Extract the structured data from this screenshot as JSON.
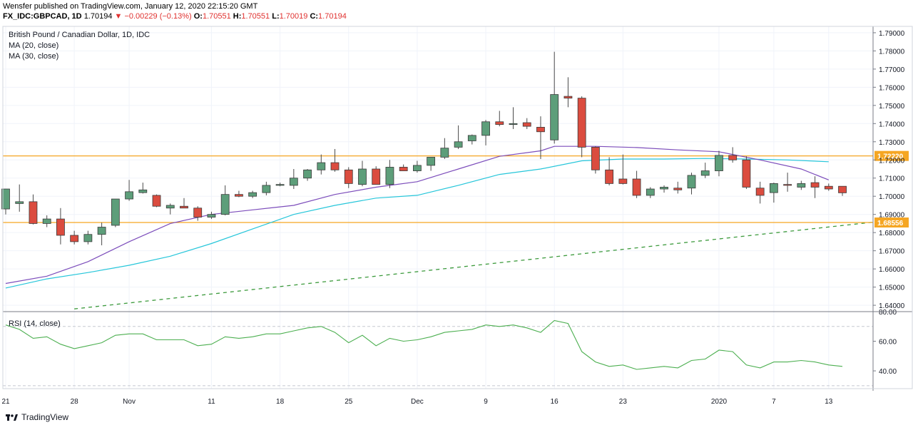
{
  "header": {
    "line1": "Wensfer published on TradingView.com, January 12, 2020 22:15:20 GMT",
    "symbol": "FX_IDC:GBPCAD, 1D",
    "last": "1.70194",
    "change": "▼ −0.00229 (−0.13%)",
    "o_label": "O:",
    "o": "1.70551",
    "h_label": "H:",
    "h": "1.70551",
    "l_label": "L:",
    "l": "1.70019",
    "c_label": "C:",
    "c": "1.70194"
  },
  "legend": {
    "title": "British Pound / Canadian Dollar, 1D, IDC",
    "ma20": "MA (20, close)",
    "ma30": "MA (30, close)",
    "rsi": "RSI (14, close)"
  },
  "footer": {
    "brand": "TradingView"
  },
  "colors": {
    "up": "#5d9e7a",
    "down": "#db4c3f",
    "ma20": "#7c4dbb",
    "ma30": "#26c6da",
    "hline": "#f5a623",
    "trend": "#3c9a3c",
    "rsi": "#4caf50"
  },
  "chart_data": {
    "type": "candlestick",
    "price_axis": {
      "ticks": [
        "1.79000",
        "1.78000",
        "1.77000",
        "1.76000",
        "1.75000",
        "1.74000",
        "1.73000",
        "1.72000",
        "1.71000",
        "1.70000",
        "1.69000",
        "1.68000",
        "1.67000",
        "1.66000",
        "1.65000",
        "1.64000"
      ],
      "range": [
        1.6365,
        1.7935
      ]
    },
    "rsi_axis": {
      "ticks": [
        "80.00",
        "60.00",
        "40.00"
      ],
      "range": [
        28,
        80
      ],
      "bands": [
        70,
        30
      ]
    },
    "time_axis": {
      "labels": [
        {
          "text": "21",
          "i": 0
        },
        {
          "text": "28",
          "i": 5
        },
        {
          "text": "Nov",
          "i": 9
        },
        {
          "text": "11",
          "i": 15
        },
        {
          "text": "18",
          "i": 20
        },
        {
          "text": "25",
          "i": 25
        },
        {
          "text": "Dec",
          "i": 30
        },
        {
          "text": "9",
          "i": 35
        },
        {
          "text": "16",
          "i": 40
        },
        {
          "text": "23",
          "i": 45
        },
        {
          "text": "2020",
          "i": 52
        },
        {
          "text": "7",
          "i": 56
        },
        {
          "text": "13",
          "i": 60
        }
      ]
    },
    "candles": [
      {
        "o": 1.693,
        "h": 1.704,
        "l": 1.69,
        "c": 1.704
      },
      {
        "o": 1.696,
        "h": 1.7065,
        "l": 1.6915,
        "c": 1.697
      },
      {
        "o": 1.697,
        "h": 1.701,
        "l": 1.6845,
        "c": 1.685
      },
      {
        "o": 1.685,
        "h": 1.6895,
        "l": 1.683,
        "c": 1.6875
      },
      {
        "o": 1.6875,
        "h": 1.6935,
        "l": 1.6735,
        "c": 1.6785
      },
      {
        "o": 1.6785,
        "h": 1.681,
        "l": 1.6735,
        "c": 1.675
      },
      {
        "o": 1.675,
        "h": 1.681,
        "l": 1.6735,
        "c": 1.679
      },
      {
        "o": 1.679,
        "h": 1.6855,
        "l": 1.673,
        "c": 1.683
      },
      {
        "o": 1.684,
        "h": 1.6985,
        "l": 1.683,
        "c": 1.6985
      },
      {
        "o": 1.6985,
        "h": 1.709,
        "l": 1.6975,
        "c": 1.7025
      },
      {
        "o": 1.702,
        "h": 1.7075,
        "l": 1.7015,
        "c": 1.7035
      },
      {
        "o": 1.7005,
        "h": 1.701,
        "l": 1.694,
        "c": 1.6945
      },
      {
        "o": 1.6935,
        "h": 1.696,
        "l": 1.69,
        "c": 1.695
      },
      {
        "o": 1.6945,
        "h": 1.699,
        "l": 1.6935,
        "c": 1.6935
      },
      {
        "o": 1.6935,
        "h": 1.6945,
        "l": 1.6865,
        "c": 1.6885
      },
      {
        "o": 1.6885,
        "h": 1.6915,
        "l": 1.6875,
        "c": 1.69
      },
      {
        "o": 1.69,
        "h": 1.706,
        "l": 1.6895,
        "c": 1.701
      },
      {
        "o": 1.701,
        "h": 1.703,
        "l": 1.6995,
        "c": 1.7
      },
      {
        "o": 1.7,
        "h": 1.703,
        "l": 1.699,
        "c": 1.702
      },
      {
        "o": 1.702,
        "h": 1.708,
        "l": 1.7005,
        "c": 1.706
      },
      {
        "o": 1.706,
        "h": 1.7075,
        "l": 1.7055,
        "c": 1.7065
      },
      {
        "o": 1.706,
        "h": 1.715,
        "l": 1.704,
        "c": 1.71
      },
      {
        "o": 1.71,
        "h": 1.715,
        "l": 1.7085,
        "c": 1.7145
      },
      {
        "o": 1.7145,
        "h": 1.723,
        "l": 1.712,
        "c": 1.7185
      },
      {
        "o": 1.7185,
        "h": 1.726,
        "l": 1.7135,
        "c": 1.7145
      },
      {
        "o": 1.7145,
        "h": 1.716,
        "l": 1.7045,
        "c": 1.707
      },
      {
        "o": 1.7065,
        "h": 1.7195,
        "l": 1.7055,
        "c": 1.715
      },
      {
        "o": 1.715,
        "h": 1.7165,
        "l": 1.7065,
        "c": 1.7065
      },
      {
        "o": 1.7065,
        "h": 1.72,
        "l": 1.7045,
        "c": 1.716
      },
      {
        "o": 1.716,
        "h": 1.7175,
        "l": 1.714,
        "c": 1.714
      },
      {
        "o": 1.714,
        "h": 1.7195,
        "l": 1.713,
        "c": 1.717
      },
      {
        "o": 1.717,
        "h": 1.7215,
        "l": 1.714,
        "c": 1.7215
      },
      {
        "o": 1.7215,
        "h": 1.732,
        "l": 1.7205,
        "c": 1.7265
      },
      {
        "o": 1.727,
        "h": 1.739,
        "l": 1.726,
        "c": 1.73
      },
      {
        "o": 1.7305,
        "h": 1.734,
        "l": 1.7285,
        "c": 1.7335
      },
      {
        "o": 1.7335,
        "h": 1.742,
        "l": 1.728,
        "c": 1.741
      },
      {
        "o": 1.741,
        "h": 1.747,
        "l": 1.7385,
        "c": 1.7395
      },
      {
        "o": 1.7395,
        "h": 1.749,
        "l": 1.737,
        "c": 1.74
      },
      {
        "o": 1.7405,
        "h": 1.743,
        "l": 1.737,
        "c": 1.7385
      },
      {
        "o": 1.738,
        "h": 1.744,
        "l": 1.7205,
        "c": 1.7355
      },
      {
        "o": 1.731,
        "h": 1.7795,
        "l": 1.729,
        "c": 1.756
      },
      {
        "o": 1.755,
        "h": 1.7655,
        "l": 1.749,
        "c": 1.754
      },
      {
        "o": 1.754,
        "h": 1.755,
        "l": 1.7215,
        "c": 1.727
      },
      {
        "o": 1.727,
        "h": 1.7275,
        "l": 1.7125,
        "c": 1.7145
      },
      {
        "o": 1.7145,
        "h": 1.7215,
        "l": 1.706,
        "c": 1.707
      },
      {
        "o": 1.7095,
        "h": 1.723,
        "l": 1.7065,
        "c": 1.707
      },
      {
        "o": 1.7095,
        "h": 1.714,
        "l": 1.699,
        "c": 1.7005
      },
      {
        "o": 1.7005,
        "h": 1.705,
        "l": 1.699,
        "c": 1.704
      },
      {
        "o": 1.704,
        "h": 1.706,
        "l": 1.702,
        "c": 1.705
      },
      {
        "o": 1.7045,
        "h": 1.708,
        "l": 1.7015,
        "c": 1.7035
      },
      {
        "o": 1.7045,
        "h": 1.713,
        "l": 1.701,
        "c": 1.7115
      },
      {
        "o": 1.7115,
        "h": 1.7185,
        "l": 1.71,
        "c": 1.714
      },
      {
        "o": 1.714,
        "h": 1.725,
        "l": 1.711,
        "c": 1.7225
      },
      {
        "o": 1.7225,
        "h": 1.727,
        "l": 1.7185,
        "c": 1.72
      },
      {
        "o": 1.72,
        "h": 1.722,
        "l": 1.704,
        "c": 1.705
      },
      {
        "o": 1.7045,
        "h": 1.708,
        "l": 1.696,
        "c": 1.7005
      },
      {
        "o": 1.702,
        "h": 1.7075,
        "l": 1.6965,
        "c": 1.707
      },
      {
        "o": 1.7065,
        "h": 1.713,
        "l": 1.7025,
        "c": 1.706
      },
      {
        "o": 1.705,
        "h": 1.7085,
        "l": 1.7035,
        "c": 1.707
      },
      {
        "o": 1.7075,
        "h": 1.711,
        "l": 1.699,
        "c": 1.705
      },
      {
        "o": 1.7055,
        "h": 1.707,
        "l": 1.703,
        "c": 1.704
      },
      {
        "o": 1.7055,
        "h": 1.7055,
        "l": 1.7002,
        "c": 1.7019
      }
    ],
    "ma20": [
      {
        "i": 0,
        "v": 1.652
      },
      {
        "i": 3,
        "v": 1.656
      },
      {
        "i": 6,
        "v": 1.664
      },
      {
        "i": 9,
        "v": 1.675
      },
      {
        "i": 12,
        "v": 1.685
      },
      {
        "i": 15,
        "v": 1.69
      },
      {
        "i": 18,
        "v": 1.6925
      },
      {
        "i": 21,
        "v": 1.695
      },
      {
        "i": 24,
        "v": 1.701
      },
      {
        "i": 27,
        "v": 1.705
      },
      {
        "i": 30,
        "v": 1.708
      },
      {
        "i": 33,
        "v": 1.715
      },
      {
        "i": 36,
        "v": 1.722
      },
      {
        "i": 39,
        "v": 1.725
      },
      {
        "i": 40,
        "v": 1.7275
      },
      {
        "i": 43,
        "v": 1.7275
      },
      {
        "i": 46,
        "v": 1.7268
      },
      {
        "i": 49,
        "v": 1.7255
      },
      {
        "i": 52,
        "v": 1.7245
      },
      {
        "i": 55,
        "v": 1.72
      },
      {
        "i": 58,
        "v": 1.715
      },
      {
        "i": 60,
        "v": 1.709
      }
    ],
    "ma30": [
      {
        "i": 0,
        "v": 1.6495
      },
      {
        "i": 3,
        "v": 1.6545
      },
      {
        "i": 6,
        "v": 1.658
      },
      {
        "i": 9,
        "v": 1.662
      },
      {
        "i": 12,
        "v": 1.667
      },
      {
        "i": 15,
        "v": 1.674
      },
      {
        "i": 18,
        "v": 1.682
      },
      {
        "i": 21,
        "v": 1.69
      },
      {
        "i": 24,
        "v": 1.695
      },
      {
        "i": 27,
        "v": 1.699
      },
      {
        "i": 30,
        "v": 1.7005
      },
      {
        "i": 33,
        "v": 1.706
      },
      {
        "i": 36,
        "v": 1.712
      },
      {
        "i": 39,
        "v": 1.715
      },
      {
        "i": 42,
        "v": 1.7195
      },
      {
        "i": 45,
        "v": 1.7205
      },
      {
        "i": 48,
        "v": 1.7205
      },
      {
        "i": 51,
        "v": 1.7208
      },
      {
        "i": 54,
        "v": 1.7205
      },
      {
        "i": 57,
        "v": 1.72
      },
      {
        "i": 60,
        "v": 1.719
      }
    ],
    "hlines": [
      {
        "value": 1.7222,
        "label": "1.72220"
      },
      {
        "value": 1.68556,
        "label": "1.68556"
      }
    ],
    "trendline": {
      "from": {
        "i": 5,
        "v": 1.638
      },
      "to": {
        "i": 66,
        "v": 1.688
      }
    },
    "rsi": [
      {
        "i": 0,
        "v": 71
      },
      {
        "i": 1,
        "v": 68
      },
      {
        "i": 2,
        "v": 62
      },
      {
        "i": 3,
        "v": 63
      },
      {
        "i": 4,
        "v": 58
      },
      {
        "i": 5,
        "v": 55
      },
      {
        "i": 6,
        "v": 57
      },
      {
        "i": 7,
        "v": 59
      },
      {
        "i": 8,
        "v": 64
      },
      {
        "i": 9,
        "v": 65
      },
      {
        "i": 10,
        "v": 65
      },
      {
        "i": 11,
        "v": 61
      },
      {
        "i": 12,
        "v": 61
      },
      {
        "i": 13,
        "v": 61
      },
      {
        "i": 14,
        "v": 57
      },
      {
        "i": 15,
        "v": 58
      },
      {
        "i": 16,
        "v": 63
      },
      {
        "i": 17,
        "v": 62
      },
      {
        "i": 18,
        "v": 63
      },
      {
        "i": 19,
        "v": 65
      },
      {
        "i": 20,
        "v": 65
      },
      {
        "i": 21,
        "v": 67
      },
      {
        "i": 22,
        "v": 69
      },
      {
        "i": 23,
        "v": 70
      },
      {
        "i": 24,
        "v": 66
      },
      {
        "i": 25,
        "v": 59
      },
      {
        "i": 26,
        "v": 64
      },
      {
        "i": 27,
        "v": 57
      },
      {
        "i": 28,
        "v": 62
      },
      {
        "i": 29,
        "v": 60
      },
      {
        "i": 30,
        "v": 61
      },
      {
        "i": 31,
        "v": 63
      },
      {
        "i": 32,
        "v": 66
      },
      {
        "i": 33,
        "v": 67
      },
      {
        "i": 34,
        "v": 68
      },
      {
        "i": 35,
        "v": 71
      },
      {
        "i": 36,
        "v": 70
      },
      {
        "i": 37,
        "v": 71
      },
      {
        "i": 38,
        "v": 69
      },
      {
        "i": 39,
        "v": 66
      },
      {
        "i": 40,
        "v": 74
      },
      {
        "i": 41,
        "v": 72
      },
      {
        "i": 42,
        "v": 53
      },
      {
        "i": 43,
        "v": 46
      },
      {
        "i": 44,
        "v": 43
      },
      {
        "i": 45,
        "v": 44
      },
      {
        "i": 46,
        "v": 41
      },
      {
        "i": 47,
        "v": 42
      },
      {
        "i": 48,
        "v": 43
      },
      {
        "i": 49,
        "v": 42
      },
      {
        "i": 50,
        "v": 47
      },
      {
        "i": 51,
        "v": 48
      },
      {
        "i": 52,
        "v": 54
      },
      {
        "i": 53,
        "v": 53
      },
      {
        "i": 54,
        "v": 44
      },
      {
        "i": 55,
        "v": 42
      },
      {
        "i": 56,
        "v": 46
      },
      {
        "i": 57,
        "v": 46
      },
      {
        "i": 58,
        "v": 47
      },
      {
        "i": 59,
        "v": 46
      },
      {
        "i": 60,
        "v": 44
      },
      {
        "i": 61,
        "v": 43
      }
    ]
  }
}
